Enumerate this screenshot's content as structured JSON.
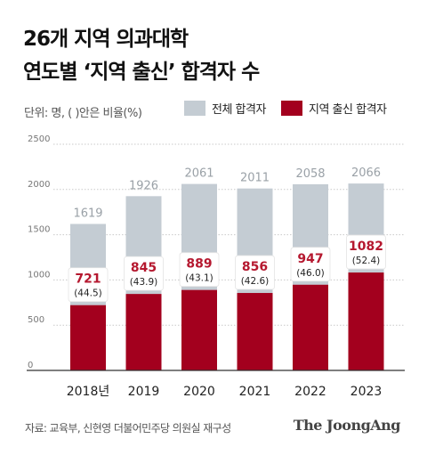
{
  "header": {
    "title_line1": "26개 지역 의과대학",
    "title_line2": "연도별 ‘지역 출신’ 합격자 수",
    "unit_note": "단위: 명, (  )안은 비율(%)"
  },
  "footer": {
    "source": "자료: 교육부, 신현영 더불어민주당 의원실 재구성",
    "brand": "The JoongAng"
  },
  "colors": {
    "total": "#c4ccd3",
    "local": "#a3001e",
    "label_total": "#9aa1a7",
    "label_local": "#b5182f"
  },
  "chart_data": {
    "type": "bar",
    "categories": [
      "2018년",
      "2019",
      "2020",
      "2021",
      "2022",
      "2023"
    ],
    "series": [
      {
        "name": "전체 합격자",
        "values": [
          1619,
          1926,
          2061,
          2011,
          2058,
          2066
        ]
      },
      {
        "name": "지역 출신 합격자",
        "values": [
          721,
          845,
          889,
          856,
          947,
          1082
        ]
      }
    ],
    "ratios": [
      "(44.5)",
      "(43.9)",
      "(43.1)",
      "(42.6)",
      "(46.0)",
      "(52.4)"
    ],
    "yticks": [
      0,
      500,
      1000,
      1500,
      2000,
      2500
    ],
    "ylim": [
      0,
      2500
    ],
    "grid": true,
    "legend_position": "top-right",
    "xlabel": "",
    "ylabel": ""
  }
}
